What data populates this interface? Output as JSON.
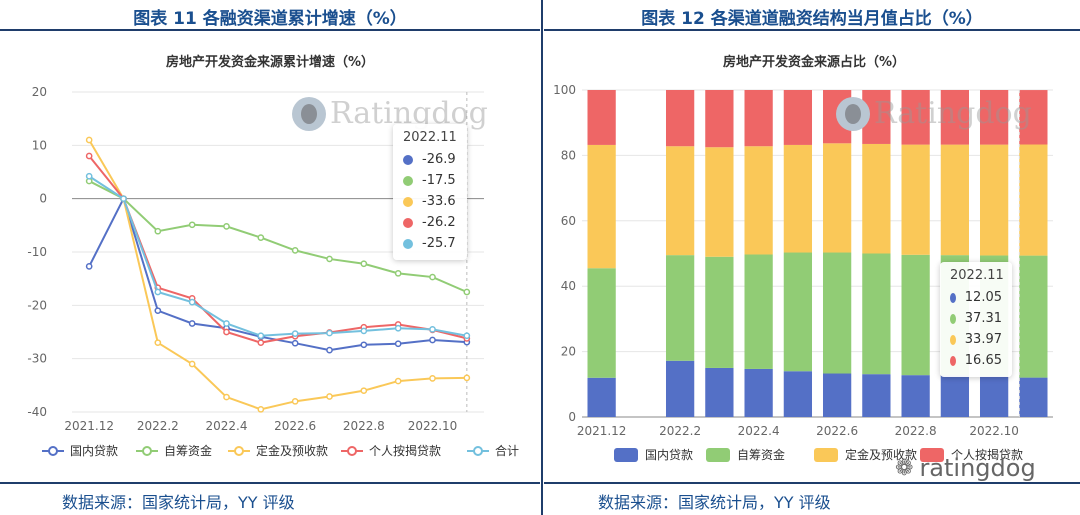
{
  "left": {
    "figure_title": "图表 11 各融资渠道累计增速（%）",
    "source": "数据来源：国家统计局，YY 评级",
    "watermark": "Ratingdog",
    "tooltip": {
      "title": "2022.11",
      "rows": [
        {
          "value": "-26.9",
          "color": "#5470c6"
        },
        {
          "value": "-17.5",
          "color": "#91cc75"
        },
        {
          "value": "-33.6",
          "color": "#fac858"
        },
        {
          "value": "-26.2",
          "color": "#ee6666"
        },
        {
          "value": "-25.7",
          "color": "#73c0de"
        }
      ]
    }
  },
  "right": {
    "figure_title": "图表 12 各渠道道融资结构当月值占比（%）",
    "source": "数据来源：国家统计局，YY 评级",
    "watermark": "Ratingdog",
    "tooltip": {
      "title": "2022.11",
      "rows": [
        {
          "value": "12.05",
          "color": "#5470c6"
        },
        {
          "value": "37.31",
          "color": "#91cc75"
        },
        {
          "value": "33.97",
          "color": "#fac858"
        },
        {
          "value": "16.65",
          "color": "#ee6666"
        }
      ]
    }
  },
  "corner_watermark": {
    "icon": "wechat-icon",
    "text": "ratingdog"
  },
  "chart_data": [
    {
      "type": "line",
      "title": "房地产开发资金来源累计增速（%）",
      "x": [
        "2021.12",
        "2022.1",
        "2022.2",
        "2022.3",
        "2022.4",
        "2022.5",
        "2022.6",
        "2022.7",
        "2022.8",
        "2022.9",
        "2022.10",
        "2022.11"
      ],
      "x_tick_labels": [
        "2021.12",
        "2022.2",
        "2022.4",
        "2022.6",
        "2022.8",
        "2022.10"
      ],
      "ylim": [
        -40,
        20
      ],
      "yticks": [
        20,
        10,
        0,
        -10,
        -20,
        -30,
        -40
      ],
      "grid": true,
      "legend_position": "bottom",
      "series": [
        {
          "name": "国内贷款",
          "color": "#5470c6",
          "values": [
            -12.7,
            0,
            -21.0,
            -23.4,
            -24.3,
            -25.9,
            -27.1,
            -28.4,
            -27.4,
            -27.2,
            -26.5,
            -26.9
          ]
        },
        {
          "name": "自筹资金",
          "color": "#91cc75",
          "values": [
            3.3,
            0,
            -6.1,
            -4.9,
            -5.2,
            -7.3,
            -9.7,
            -11.3,
            -12.2,
            -14.0,
            -14.7,
            -17.5
          ]
        },
        {
          "name": "定金及预收款",
          "color": "#fac858",
          "values": [
            11.0,
            0,
            -27.0,
            -31.0,
            -37.2,
            -39.5,
            -38.0,
            -37.1,
            -36.0,
            -34.2,
            -33.7,
            -33.6
          ]
        },
        {
          "name": "个人按揭贷款",
          "color": "#ee6666",
          "values": [
            8.0,
            0,
            -16.7,
            -18.7,
            -25.0,
            -27.0,
            -25.8,
            -25.1,
            -24.1,
            -23.6,
            -24.6,
            -26.2
          ]
        },
        {
          "name": "合计",
          "color": "#73c0de",
          "values": [
            4.2,
            0,
            -17.5,
            -19.4,
            -23.4,
            -25.7,
            -25.3,
            -25.2,
            -24.8,
            -24.3,
            -24.5,
            -25.7
          ]
        }
      ]
    },
    {
      "type": "bar",
      "stacked": true,
      "title": "房地产开发资金来源占比（%）",
      "categories": [
        "2021.12",
        "2022.1",
        "2022.2",
        "2022.3",
        "2022.4",
        "2022.5",
        "2022.6",
        "2022.7",
        "2022.8",
        "2022.9",
        "2022.10",
        "2022.11"
      ],
      "x_tick_labels": [
        "2021.12",
        "2022.2",
        "2022.4",
        "2022.6",
        "2022.8",
        "2022.10"
      ],
      "ylim": [
        0,
        100
      ],
      "yticks": [
        0,
        20,
        40,
        60,
        80,
        100
      ],
      "grid": true,
      "legend_position": "bottom",
      "series": [
        {
          "name": "国内贷款",
          "color": "#5470c6",
          "values": [
            12.0,
            null,
            17.2,
            15.0,
            14.7,
            14.0,
            13.3,
            13.1,
            12.8,
            12.7,
            12.5,
            12.05
          ]
        },
        {
          "name": "自筹资金",
          "color": "#91cc75",
          "values": [
            33.5,
            null,
            32.3,
            34.0,
            35.0,
            36.3,
            37.0,
            36.9,
            36.8,
            36.8,
            36.9,
            37.31
          ]
        },
        {
          "name": "定金及预收款",
          "color": "#fac858",
          "values": [
            37.7,
            null,
            33.3,
            33.5,
            33.1,
            32.9,
            33.4,
            33.5,
            33.7,
            33.8,
            33.9,
            33.97
          ]
        },
        {
          "name": "个人按揭贷款",
          "color": "#ee6666",
          "values": [
            16.8,
            null,
            17.2,
            17.5,
            17.2,
            16.8,
            16.3,
            16.5,
            16.7,
            16.7,
            16.7,
            16.65
          ]
        }
      ]
    }
  ]
}
